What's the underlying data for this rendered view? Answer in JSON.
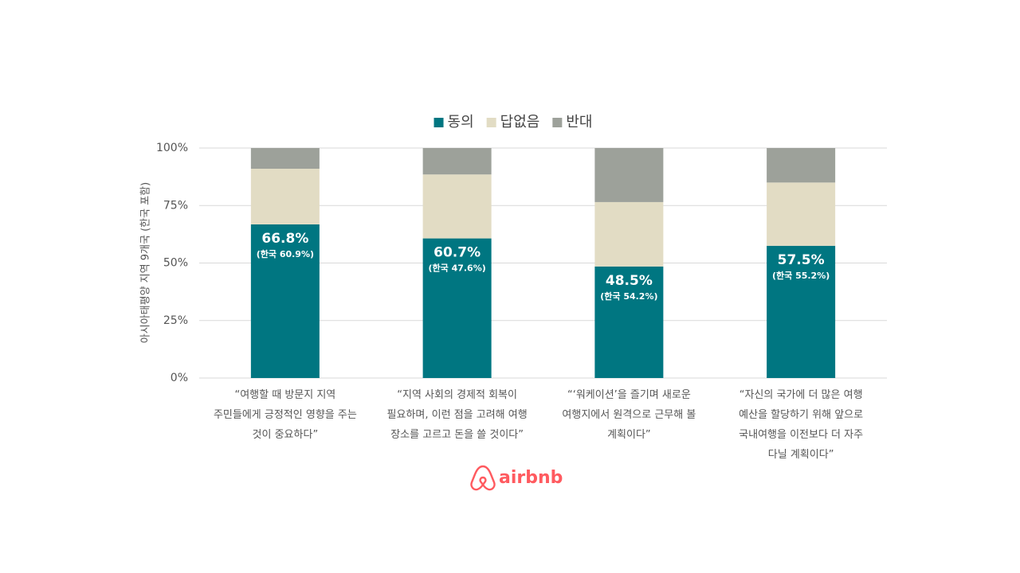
{
  "chart_data": {
    "type": "stacked_bar",
    "legend": "top",
    "y_axis_label": "아시아태평양 지역 9개국 (한국 포함)",
    "categories": [
      "“여행할 때 방문지 지역\n주민들에게 긍정적인 영향을 주는\n것이 중요하다”",
      "“지역 사회의 경제적 회복이\n필요하며, 이런 점을 고려해 여행\n장소를 고르고 돈을 쓸 것이다”",
      "“‘워케이션’을 즐기며 새로운\n여행지에서 원격으로 근무해 볼\n계획이다”",
      "“자신의 국가에 더 많은 여행\n예산을 할당하기 위해 앞으로\n국내여행을 이전보다 더 자주\n다닐 계획이다”"
    ],
    "series": [
      {
        "name": "동의",
        "color": "#007681",
        "values": [
          66.8,
          60.7,
          48.5,
          57.5
        ],
        "value_labels": [
          "66.8%",
          "60.7%",
          "48.5%",
          "57.5%"
        ],
        "korea_labels": [
          "(한국 60.9%)",
          "(한국 47.6%)",
          "(한국 54.2%)",
          "(한국 55.2%)"
        ]
      },
      {
        "name": "답없음",
        "color": "#e2dcc4",
        "values": [
          24.2,
          27.8,
          28.0,
          27.5
        ]
      },
      {
        "name": "반대",
        "color": "#9da19a",
        "values": [
          9.0,
          11.5,
          23.5,
          15.0
        ]
      }
    ],
    "ylim": [
      0,
      100
    ],
    "yticks": [
      {
        "value": 0,
        "label": "0%"
      },
      {
        "value": 25,
        "label": "25%"
      },
      {
        "value": 50,
        "label": "50%"
      },
      {
        "value": 75,
        "label": "75%"
      },
      {
        "value": 100,
        "label": "100%"
      }
    ],
    "grid": true
  },
  "logo": "airbnb"
}
